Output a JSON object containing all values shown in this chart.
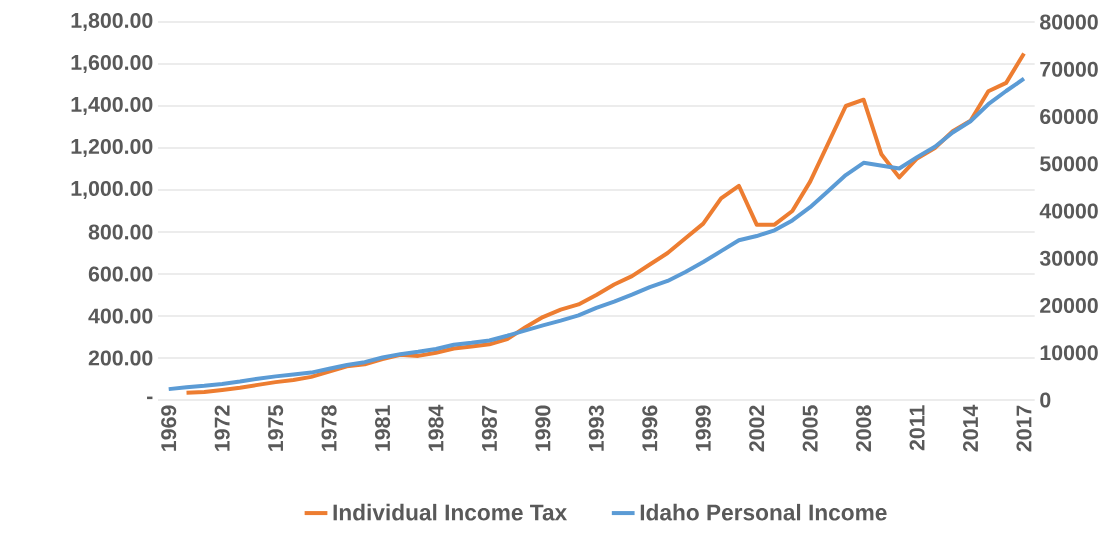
{
  "chart_data": {
    "type": "line",
    "categories": [
      "1969",
      null,
      null,
      "1972",
      null,
      null,
      "1975",
      null,
      null,
      "1978",
      null,
      null,
      "1981",
      null,
      null,
      "1984",
      null,
      null,
      "1987",
      null,
      null,
      "1990",
      null,
      null,
      "1993",
      null,
      null,
      "1996",
      null,
      null,
      "1999",
      null,
      null,
      "2002",
      null,
      null,
      "2005",
      null,
      null,
      "2008",
      null,
      null,
      "2011",
      null,
      null,
      "2014",
      null,
      null,
      "2017"
    ],
    "series": [
      {
        "name": "Individual Income Tax",
        "color": "#ed7d31",
        "values": [
          null,
          35,
          38,
          48,
          58,
          72,
          85,
          95,
          110,
          135,
          160,
          170,
          195,
          215,
          210,
          225,
          245,
          255,
          265,
          290,
          345,
          395,
          430,
          455,
          500,
          550,
          590,
          645,
          700,
          770,
          840,
          960,
          1020,
          835,
          835,
          900,
          1040,
          1220,
          1400,
          1430,
          1170,
          1060,
          1150,
          1200,
          1280,
          1330,
          1470,
          1510,
          1650
        ]
      },
      {
        "name": "Idaho Personal Income",
        "color": "#5b9bd5",
        "axis": "y2",
        "values": [
          2300,
          2700,
          3000,
          3400,
          3900,
          4500,
          5000,
          5400,
          5800,
          6600,
          7400,
          8000,
          9000,
          9700,
          10200,
          10800,
          11700,
          12100,
          12600,
          13600,
          14700,
          15800,
          16800,
          17900,
          19500,
          20800,
          22300,
          23900,
          25200,
          27100,
          29200,
          31500,
          33800,
          34700,
          35900,
          38000,
          40800,
          44200,
          47600,
          50200,
          49600,
          49000,
          51400,
          53600,
          56600,
          59000,
          62600,
          65400,
          68000
        ]
      }
    ],
    "ylim": [
      0,
      1800
    ],
    "yticks": [
      {
        "value": 0,
        "label": "-"
      },
      {
        "value": 200,
        "label": "200.00"
      },
      {
        "value": 400,
        "label": "400.00"
      },
      {
        "value": 600,
        "label": "600.00"
      },
      {
        "value": 800,
        "label": "800.00"
      },
      {
        "value": 1000,
        "label": "1,000.00"
      },
      {
        "value": 1200,
        "label": "1,200.00"
      },
      {
        "value": 1400,
        "label": "1,400.00"
      },
      {
        "value": 1600,
        "label": "1,600.00"
      },
      {
        "value": 1800,
        "label": "1,800.00"
      }
    ],
    "y2lim": [
      0,
      80000
    ],
    "y2ticks": [
      0,
      10000,
      20000,
      30000,
      40000,
      50000,
      60000,
      70000,
      80000
    ],
    "grid": "y",
    "legend": "bottom",
    "marker": "none",
    "line_style": "solid"
  }
}
